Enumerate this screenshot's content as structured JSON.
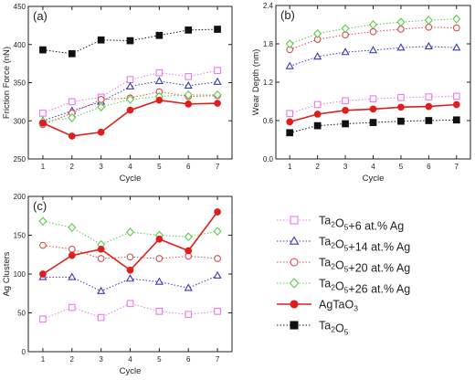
{
  "chart_data": [
    {
      "type": "line",
      "panel_label": "(a)",
      "xlabel": "Cycle",
      "ylabel": "Friction Force (nN)",
      "x": [
        1,
        2,
        3,
        4,
        5,
        6,
        7
      ],
      "xlim": [
        0.5,
        7.5
      ],
      "ylim": [
        250,
        450
      ],
      "yticks": [
        250,
        300,
        350,
        400,
        450
      ],
      "grid": false,
      "series": [
        {
          "ref": "s6",
          "values": [
            310,
            325,
            331,
            354,
            363,
            358,
            366
          ]
        },
        {
          "ref": "s14",
          "values": [
            300,
            313,
            325,
            345,
            352,
            346,
            351
          ]
        },
        {
          "ref": "s20",
          "values": [
            295,
            310,
            328,
            330,
            338,
            332,
            333
          ]
        },
        {
          "ref": "s26",
          "values": [
            299,
            304,
            318,
            328,
            332,
            334,
            334
          ]
        },
        {
          "ref": "sAg",
          "values": [
            297,
            280,
            285,
            314,
            327,
            322,
            323
          ]
        },
        {
          "ref": "sTa",
          "values": [
            393,
            388,
            406,
            405,
            412,
            419,
            420
          ]
        }
      ]
    },
    {
      "type": "line",
      "panel_label": "(b)",
      "xlabel": "Cycle",
      "ylabel": "Wear Depth (nm)",
      "x": [
        1,
        2,
        3,
        4,
        5,
        6,
        7
      ],
      "xlim": [
        0.5,
        7.5
      ],
      "ylim": [
        0.0,
        2.4
      ],
      "yticks": [
        "0.0",
        "0.6",
        "1.2",
        "1.8",
        "2.4"
      ],
      "grid": false,
      "series": [
        {
          "ref": "s6",
          "values": [
            0.71,
            0.85,
            0.91,
            0.94,
            0.96,
            0.97,
            0.98
          ]
        },
        {
          "ref": "s14",
          "values": [
            1.45,
            1.6,
            1.67,
            1.7,
            1.74,
            1.76,
            1.74
          ]
        },
        {
          "ref": "s20",
          "values": [
            1.71,
            1.87,
            1.94,
            1.99,
            2.03,
            2.06,
            2.05
          ]
        },
        {
          "ref": "s26",
          "values": [
            1.8,
            1.96,
            2.04,
            2.1,
            2.14,
            2.17,
            2.19
          ]
        },
        {
          "ref": "sAg",
          "values": [
            0.58,
            0.7,
            0.76,
            0.78,
            0.81,
            0.82,
            0.85
          ]
        },
        {
          "ref": "sTa",
          "values": [
            0.41,
            0.52,
            0.55,
            0.57,
            0.59,
            0.6,
            0.61
          ]
        }
      ]
    },
    {
      "type": "line",
      "panel_label": "(c)",
      "xlabel": "Cycle",
      "ylabel": "Ag Clusters",
      "x": [
        1,
        2,
        3,
        4,
        5,
        6,
        7
      ],
      "xlim": [
        0.5,
        7.5
      ],
      "ylim": [
        0,
        200
      ],
      "yticks": [
        0,
        50,
        100,
        150,
        200
      ],
      "grid": false,
      "series": [
        {
          "ref": "s6",
          "values": [
            42,
            57,
            44,
            62,
            52,
            48,
            52
          ]
        },
        {
          "ref": "s14",
          "values": [
            96,
            96,
            78,
            94,
            90,
            82,
            98
          ]
        },
        {
          "ref": "s20",
          "values": [
            137,
            132,
            120,
            122,
            120,
            123,
            120
          ]
        },
        {
          "ref": "s26",
          "values": [
            168,
            160,
            138,
            154,
            150,
            148,
            155
          ]
        },
        {
          "ref": "sAg",
          "values": [
            100,
            124,
            132,
            105,
            145,
            130,
            180
          ]
        }
      ]
    }
  ],
  "legend": {
    "placement": "right-bottom",
    "entries": [
      {
        "key": "s6",
        "prefix": "Ta",
        "sub1": "2",
        "mid": "O",
        "sub2": "5",
        "suffix": "+6 at.% Ag",
        "color": "#e87be8",
        "marker": "square",
        "fill": "none",
        "dash": true
      },
      {
        "key": "s14",
        "prefix": "Ta",
        "sub1": "2",
        "mid": "O",
        "sub2": "5",
        "suffix": "+14 at.% Ag",
        "color": "#3a3ab8",
        "marker": "triangle",
        "fill": "none",
        "dash": true
      },
      {
        "key": "s20",
        "prefix": "Ta",
        "sub1": "2",
        "mid": "O",
        "sub2": "5",
        "suffix": "+20 at.% Ag",
        "color": "#d94b4b",
        "marker": "circle",
        "fill": "none",
        "dash": true
      },
      {
        "key": "s26",
        "prefix": "Ta",
        "sub1": "2",
        "mid": "O",
        "sub2": "5",
        "suffix": "+26 at.% Ag",
        "color": "#5ecb47",
        "marker": "diamond",
        "fill": "none",
        "dash": true
      },
      {
        "key": "sAg",
        "prefix": "AgTaO",
        "sub1": "3",
        "mid": "",
        "sub2": "",
        "suffix": "",
        "color": "#e01d1d",
        "marker": "circle",
        "fill": "#e01d1d",
        "dash": false
      },
      {
        "key": "sTa",
        "prefix": "Ta",
        "sub1": "2",
        "mid": "O",
        "sub2": "5",
        "suffix": "",
        "color": "#111111",
        "marker": "square",
        "fill": "#111111",
        "dash": true
      }
    ]
  }
}
